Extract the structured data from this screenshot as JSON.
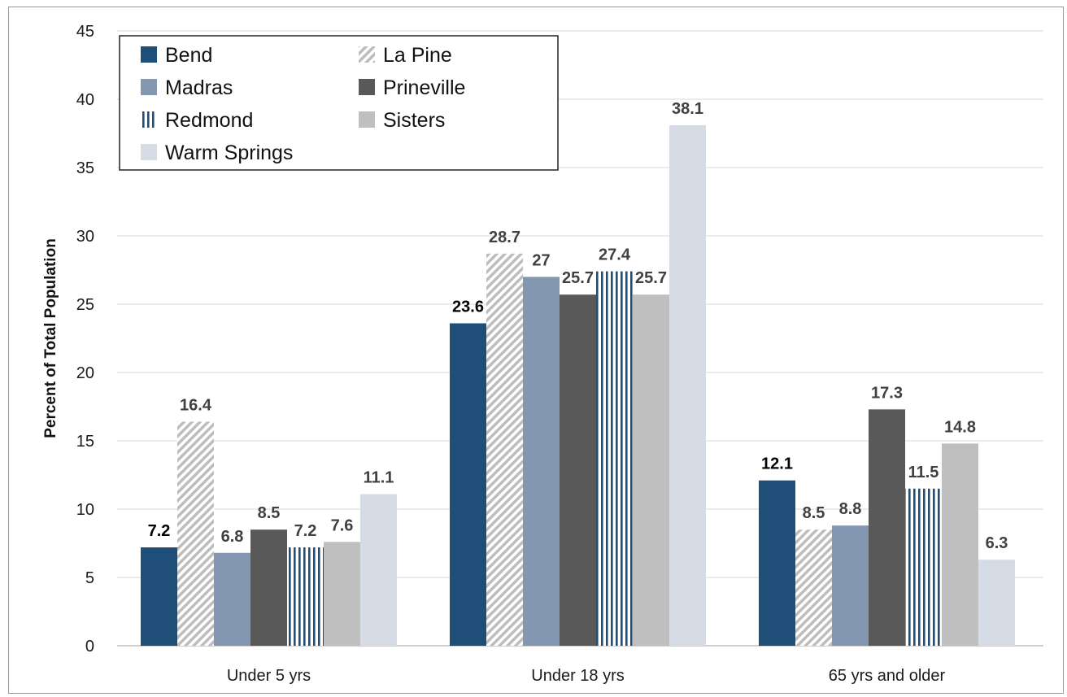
{
  "chart_data": {
    "type": "bar",
    "ylabel": "Percent of Total Population",
    "xlabel": "",
    "ylim": [
      0,
      45
    ],
    "yticks": [
      0,
      5,
      10,
      15,
      20,
      25,
      30,
      35,
      40,
      45
    ],
    "grid": true,
    "legend_placement": "top-left",
    "categories": [
      "Under 5 yrs",
      "Under 18 yrs",
      "65 yrs and older"
    ],
    "series": [
      {
        "name": "Bend",
        "values": [
          7.2,
          23.6,
          12.1
        ],
        "labels": [
          "7.2",
          "23.6",
          "12.1"
        ],
        "color": "#1f4e79",
        "pattern": "solid",
        "label_color": "#000000"
      },
      {
        "name": "La Pine",
        "values": [
          16.4,
          28.7,
          8.5
        ],
        "labels": [
          "16.4",
          "28.7",
          "8.5"
        ],
        "color": "#c8c8c8",
        "pattern": "diagonal-hatch",
        "label_color": "#404040"
      },
      {
        "name": "Madras",
        "values": [
          6.8,
          27,
          8.8
        ],
        "labels": [
          "6.8",
          "27",
          "8.8"
        ],
        "color": "#8497b0",
        "pattern": "solid",
        "label_color": "#404040"
      },
      {
        "name": "Prineville",
        "values": [
          8.5,
          25.7,
          17.3
        ],
        "labels": [
          "8.5",
          "25.7",
          "17.3"
        ],
        "color": "#595959",
        "pattern": "solid",
        "label_color": "#404040"
      },
      {
        "name": "Redmond",
        "values": [
          7.2,
          27.4,
          11.5
        ],
        "labels": [
          "7.2",
          "27.4",
          "11.5"
        ],
        "color": "#1f4e79",
        "pattern": "vertical-stripes",
        "label_color": "#404040"
      },
      {
        "name": "Sisters",
        "values": [
          7.6,
          25.7,
          14.8
        ],
        "labels": [
          "7.6",
          "25.7",
          "14.8"
        ],
        "color": "#bfbfbf",
        "pattern": "solid",
        "label_color": "#404040"
      },
      {
        "name": "Warm Springs",
        "values": [
          11.1,
          38.1,
          6.3
        ],
        "labels": [
          "11.1",
          "38.1",
          "6.3"
        ],
        "color": "#d6dce5",
        "pattern": "solid",
        "label_color": "#404040"
      }
    ]
  }
}
